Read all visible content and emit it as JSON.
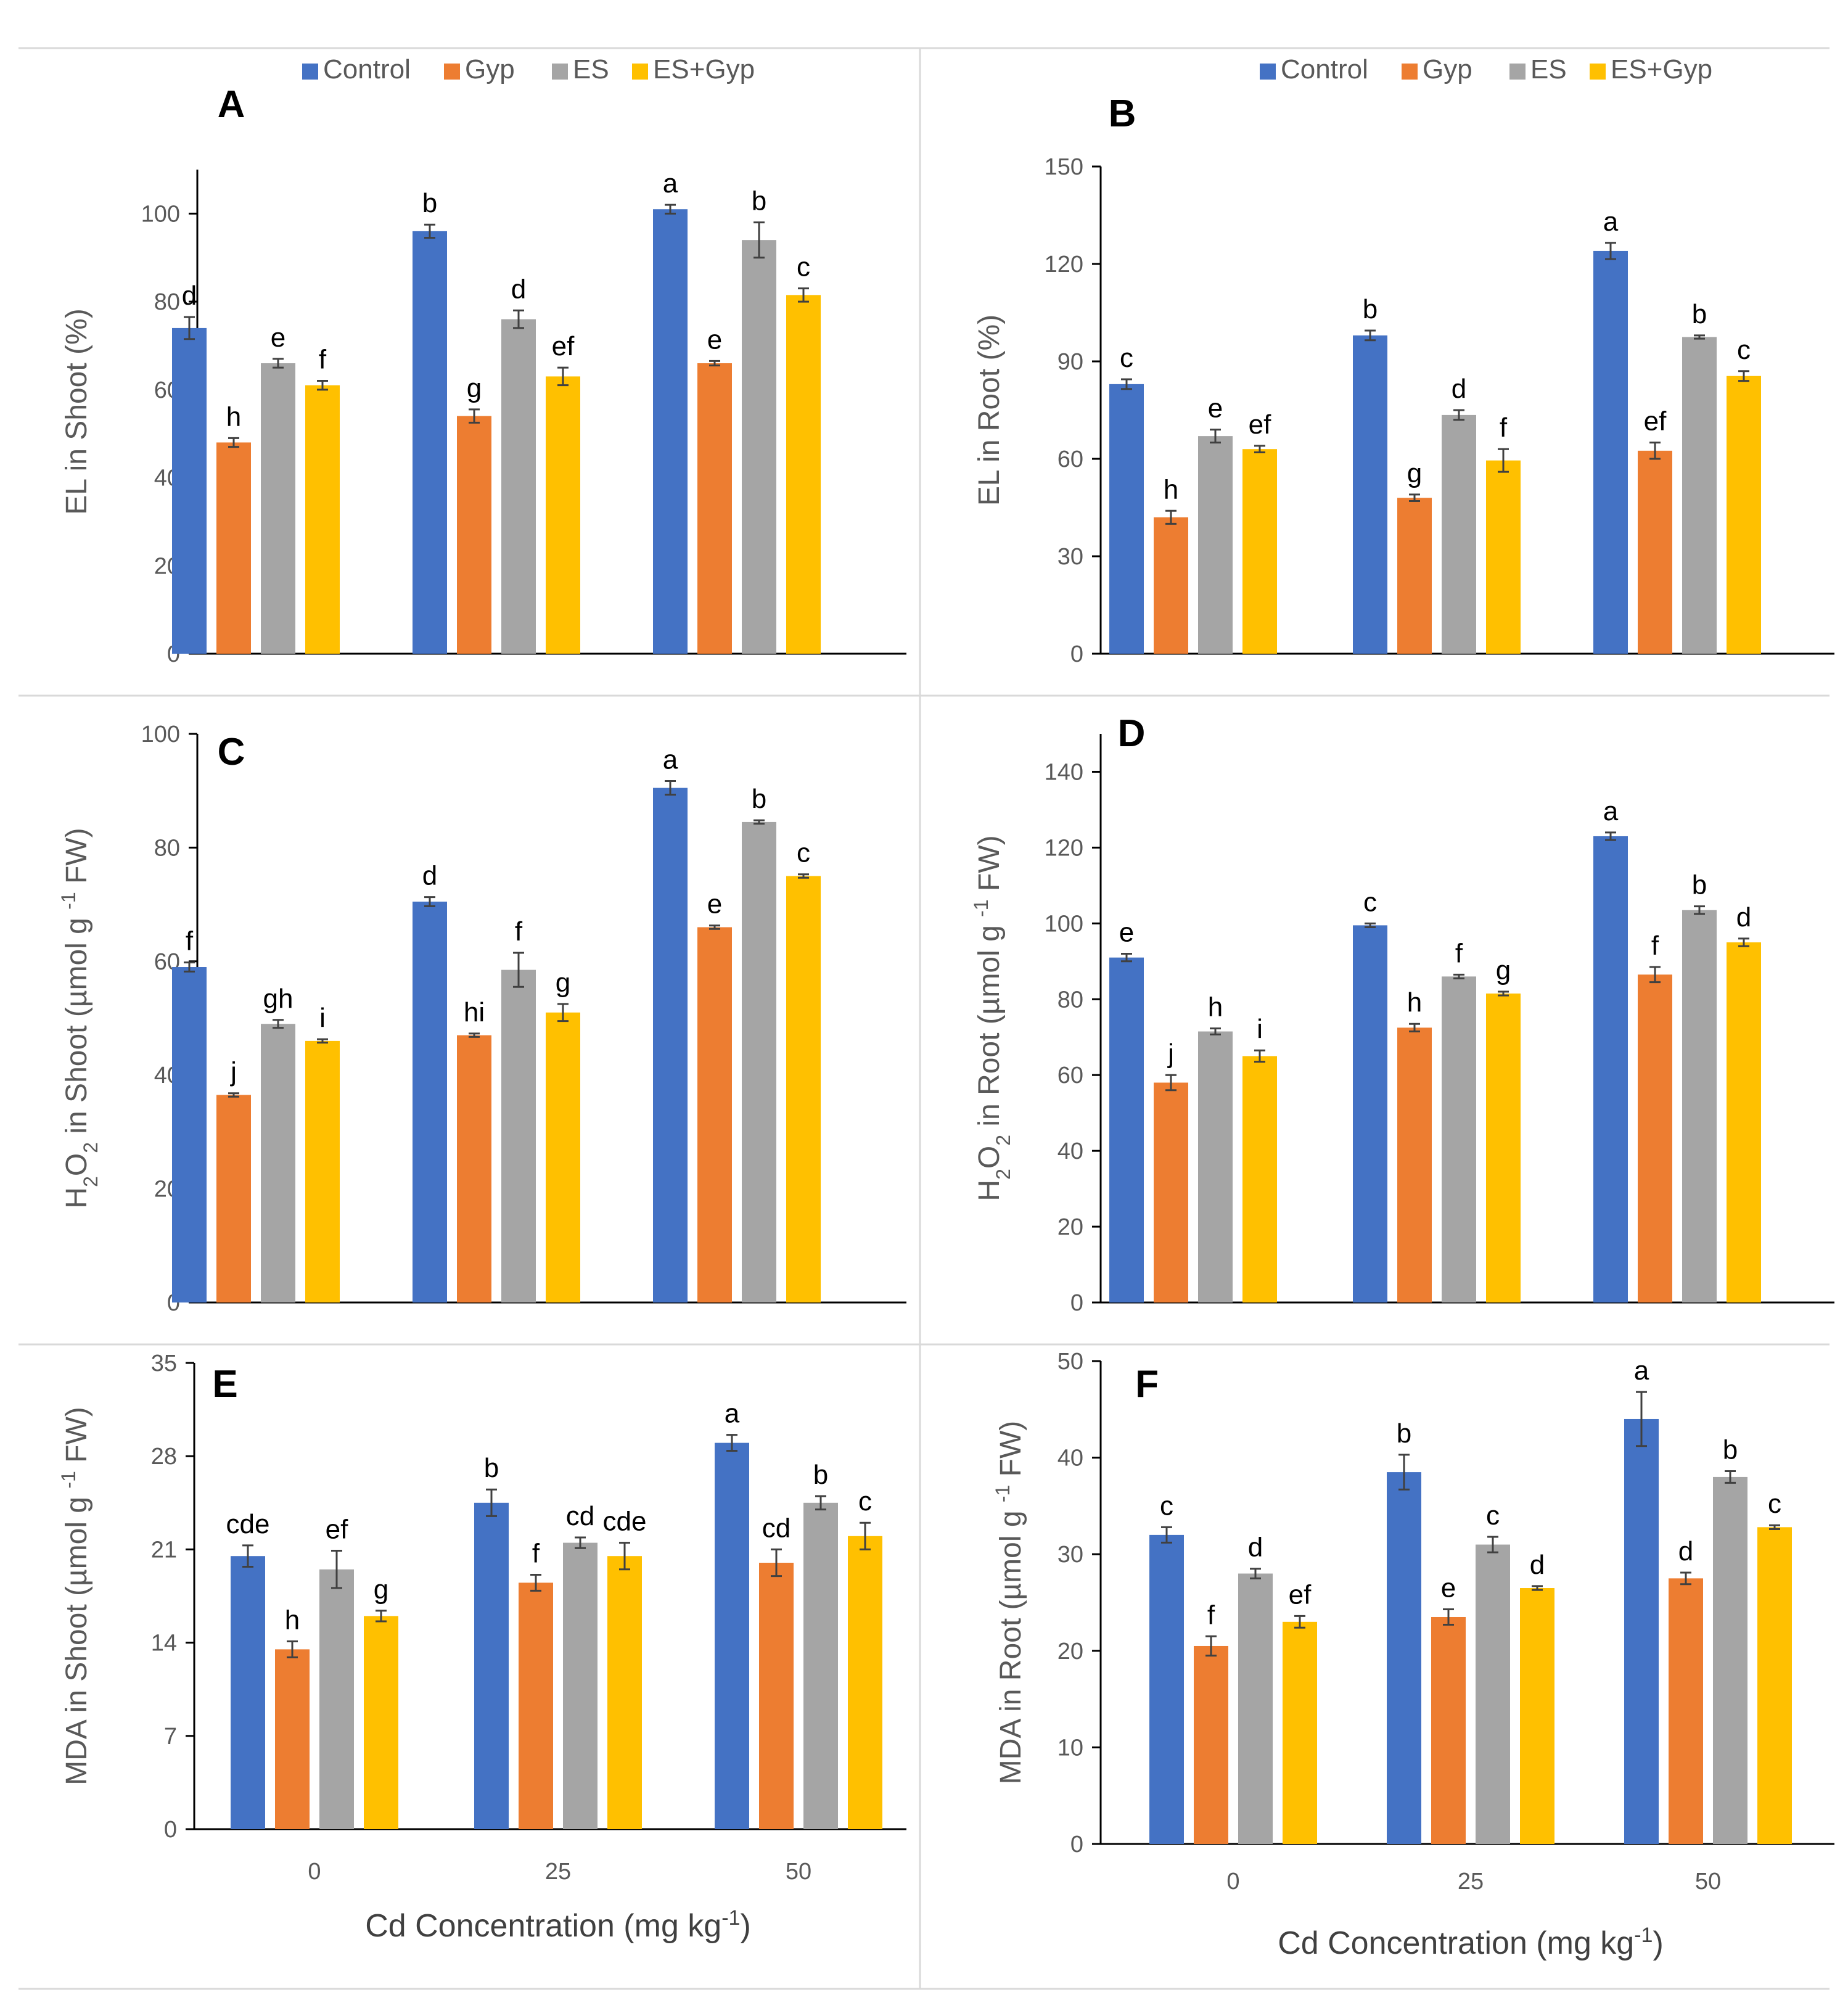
{
  "figure": {
    "series_names": [
      "Control",
      "Gyp",
      "ES",
      "ES+Gyp"
    ],
    "colors": [
      "#4472C4",
      "#ED7D31",
      "#A5A5A5",
      "#FFC000"
    ],
    "xlabel_main": "Cd Concentration (mg kg",
    "xlabel_sup": "-1",
    "xlabel_end": ")"
  },
  "chart_data": [
    {
      "type": "bar",
      "panel": "A",
      "categories": [
        "0",
        "25",
        "50"
      ],
      "show_categories": false,
      "ylabel": [
        {
          "t": "EL in Shoot (%)"
        }
      ],
      "ylim": [
        0,
        110
      ],
      "yticks": [
        0,
        20,
        40,
        60,
        80,
        100
      ],
      "series": [
        {
          "name": "Control",
          "values": [
            74,
            96,
            101
          ],
          "errors": [
            2.5,
            1.5,
            1
          ]
        },
        {
          "name": "Gyp",
          "values": [
            48,
            54,
            66
          ],
          "errors": [
            1,
            1.5,
            0.5
          ]
        },
        {
          "name": "ES",
          "values": [
            66,
            76,
            94
          ],
          "errors": [
            1,
            2,
            4
          ]
        },
        {
          "name": "ES+Gyp",
          "values": [
            61,
            63,
            81.5
          ],
          "errors": [
            1,
            2,
            1.5
          ]
        }
      ],
      "letters": [
        [
          "d",
          "b",
          "a"
        ],
        [
          "h",
          "g",
          "e"
        ],
        [
          "e",
          "d",
          "b"
        ],
        [
          "f",
          "ef",
          "c"
        ]
      ]
    },
    {
      "type": "bar",
      "panel": "B",
      "categories": [
        "0",
        "25",
        "50"
      ],
      "show_categories": false,
      "ylabel": [
        {
          "t": "EL in Root (%)"
        }
      ],
      "ylim": [
        0,
        150
      ],
      "yticks": [
        0,
        30,
        60,
        90,
        120,
        150
      ],
      "series": [
        {
          "name": "Control",
          "values": [
            83,
            98,
            124
          ],
          "errors": [
            1.5,
            1.5,
            2.5
          ]
        },
        {
          "name": "Gyp",
          "values": [
            42,
            48,
            62.5
          ],
          "errors": [
            2,
            1,
            2.5
          ]
        },
        {
          "name": "ES",
          "values": [
            67,
            73.5,
            97.5
          ],
          "errors": [
            2,
            1.5,
            0.5
          ]
        },
        {
          "name": "ES+Gyp",
          "values": [
            63,
            59.5,
            85.5
          ],
          "errors": [
            1,
            3.5,
            1.5
          ]
        }
      ],
      "letters": [
        [
          "c",
          "b",
          "a"
        ],
        [
          "h",
          "g",
          "ef"
        ],
        [
          "e",
          "d",
          "b"
        ],
        [
          "ef",
          "f",
          "c"
        ]
      ]
    },
    {
      "type": "bar",
      "panel": "C",
      "categories": [
        "0",
        "25",
        "50"
      ],
      "show_categories": false,
      "ylabel": [
        {
          "t": "H"
        },
        {
          "t": "2",
          "sub": true
        },
        {
          "t": "O"
        },
        {
          "t": "2",
          "sub": true
        },
        {
          "t": " in Shoot (µmol g "
        },
        {
          "t": "-1",
          "sup": true
        },
        {
          "t": " FW)"
        }
      ],
      "ylim": [
        0,
        100
      ],
      "yticks": [
        0,
        20,
        40,
        60,
        80,
        100
      ],
      "series": [
        {
          "name": "Control",
          "values": [
            59,
            70.5,
            90.5
          ],
          "errors": [
            0.8,
            0.8,
            1.2
          ]
        },
        {
          "name": "Gyp",
          "values": [
            36.5,
            47,
            66
          ],
          "errors": [
            0.3,
            0.3,
            0.3
          ]
        },
        {
          "name": "ES",
          "values": [
            49,
            58.5,
            84.5
          ],
          "errors": [
            0.7,
            3,
            0.3
          ]
        },
        {
          "name": "ES+Gyp",
          "values": [
            46,
            51,
            75
          ],
          "errors": [
            0.3,
            1.5,
            0.3
          ]
        }
      ],
      "letters": [
        [
          "f",
          "d",
          "a"
        ],
        [
          "j",
          "hi",
          "e"
        ],
        [
          "gh",
          "f",
          "b"
        ],
        [
          "i",
          "g",
          "c"
        ]
      ]
    },
    {
      "type": "bar",
      "panel": "D",
      "categories": [
        "0",
        "25",
        "50"
      ],
      "show_categories": false,
      "ylabel": [
        {
          "t": "H"
        },
        {
          "t": "2",
          "sub": true
        },
        {
          "t": "O"
        },
        {
          "t": "2",
          "sub": true
        },
        {
          "t": " in Root (µmol g "
        },
        {
          "t": "-1",
          "sup": true
        },
        {
          "t": " FW)"
        }
      ],
      "ylim": [
        0,
        150
      ],
      "yticks": [
        0,
        20,
        40,
        60,
        80,
        100,
        120,
        140
      ],
      "series": [
        {
          "name": "Control",
          "values": [
            91,
            99.5,
            123
          ],
          "errors": [
            1,
            0.5,
            1
          ]
        },
        {
          "name": "Gyp",
          "values": [
            58,
            72.5,
            86.5
          ],
          "errors": [
            2,
            1,
            2
          ]
        },
        {
          "name": "ES",
          "values": [
            71.5,
            86,
            103.5
          ],
          "errors": [
            0.8,
            0.5,
            1
          ]
        },
        {
          "name": "ES+Gyp",
          "values": [
            65,
            81.5,
            95
          ],
          "errors": [
            1.5,
            0.5,
            1
          ]
        }
      ],
      "letters": [
        [
          "e",
          "c",
          "a"
        ],
        [
          "j",
          "h",
          "f"
        ],
        [
          "h",
          "f",
          "b"
        ],
        [
          "i",
          "g",
          "d"
        ]
      ]
    },
    {
      "type": "bar",
      "panel": "E",
      "categories": [
        "0",
        "25",
        "50"
      ],
      "show_categories": true,
      "ylabel": [
        {
          "t": "MDA in Shoot (µmol g "
        },
        {
          "t": "-1",
          "sup": true
        },
        {
          "t": " FW)"
        }
      ],
      "ylim": [
        0,
        35
      ],
      "yticks": [
        0,
        7,
        14,
        21,
        28,
        35
      ],
      "series": [
        {
          "name": "Control",
          "values": [
            20.5,
            24.5,
            29
          ],
          "errors": [
            0.8,
            1,
            0.6
          ]
        },
        {
          "name": "Gyp",
          "values": [
            13.5,
            18.5,
            20
          ],
          "errors": [
            0.6,
            0.6,
            1
          ]
        },
        {
          "name": "ES",
          "values": [
            19.5,
            21.5,
            24.5
          ],
          "errors": [
            1.4,
            0.4,
            0.5
          ]
        },
        {
          "name": "ES+Gyp",
          "values": [
            16,
            20.5,
            22
          ],
          "errors": [
            0.4,
            1,
            1
          ]
        }
      ],
      "letters": [
        [
          "cde",
          "b",
          "a"
        ],
        [
          "h",
          "f",
          "cd"
        ],
        [
          "ef",
          "cd",
          "b"
        ],
        [
          "g",
          "cde",
          "c"
        ]
      ]
    },
    {
      "type": "bar",
      "panel": "F",
      "categories": [
        "0",
        "25",
        "50"
      ],
      "show_categories": true,
      "ylabel": [
        {
          "t": "MDA in Root (µmol g "
        },
        {
          "t": "-1",
          "sup": true
        },
        {
          "t": " FW)"
        }
      ],
      "ylim": [
        0,
        50
      ],
      "yticks": [
        0,
        10,
        20,
        30,
        40,
        50
      ],
      "series": [
        {
          "name": "Control",
          "values": [
            32,
            38.5,
            44
          ],
          "errors": [
            0.8,
            1.8,
            2.8
          ]
        },
        {
          "name": "Gyp",
          "values": [
            20.5,
            23.5,
            27.5
          ],
          "errors": [
            1,
            0.8,
            0.6
          ]
        },
        {
          "name": "ES",
          "values": [
            28,
            31,
            38
          ],
          "errors": [
            0.5,
            0.8,
            0.6
          ]
        },
        {
          "name": "ES+Gyp",
          "values": [
            23,
            26.5,
            32.8
          ],
          "errors": [
            0.6,
            0.2,
            0.2
          ]
        }
      ],
      "letters": [
        [
          "c",
          "b",
          "a"
        ],
        [
          "f",
          "e",
          "d"
        ],
        [
          "d",
          "c",
          "b"
        ],
        [
          "ef",
          "d",
          "c"
        ]
      ]
    }
  ]
}
